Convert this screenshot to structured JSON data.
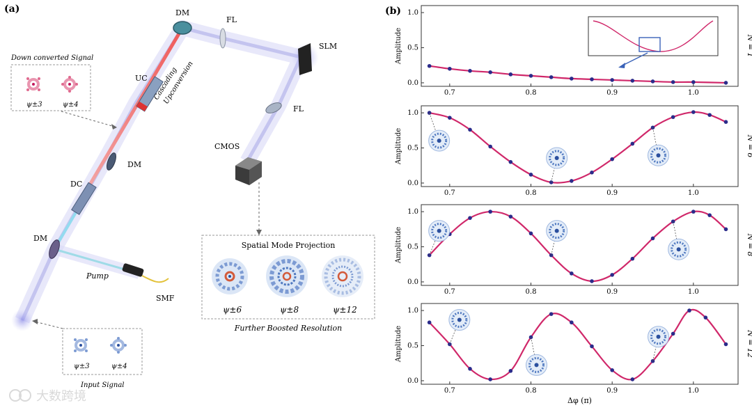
{
  "panel_a": {
    "label": "(a)",
    "components": {
      "dm_top": "DM",
      "fl_top": "FL",
      "slm": "SLM",
      "fl_right": "FL",
      "uc": "UC",
      "dm_mid": "DM",
      "dc": "DC",
      "dm_bottom": "DM",
      "cmos": "CMOS",
      "smf": "SMF",
      "pump": "Pump"
    },
    "cascading": [
      "Cascading",
      "Upconversion"
    ],
    "down_converted": {
      "title": "Down converted Signal",
      "modes": [
        "ψ±3",
        "ψ±4"
      ]
    },
    "input_signal": {
      "title": "Input Signal",
      "modes": [
        "ψ±3",
        "ψ±4"
      ]
    },
    "projection": {
      "title": "Spatial Mode Projection",
      "modes": [
        "ψ±6",
        "ψ±8",
        "ψ±12"
      ],
      "caption": "Further Boosted Resolution"
    }
  },
  "panel_b": {
    "label": "(b)",
    "watermark": "大数跨境"
  },
  "chart_data": [
    {
      "type": "line",
      "n_label": "N = 1",
      "ylabel": "Amplitude",
      "xlabel": "",
      "xlim": [
        0.665,
        1.055
      ],
      "ylim": [
        -0.05,
        1.1
      ],
      "xticks": [
        "0.7",
        "0.8",
        "0.9",
        "1.0"
      ],
      "yticks": [
        "0.0",
        "0.5",
        "1.0"
      ],
      "x": [
        0.675,
        0.7,
        0.725,
        0.75,
        0.775,
        0.8,
        0.825,
        0.85,
        0.875,
        0.9,
        0.925,
        0.95,
        0.975,
        1.0,
        1.04
      ],
      "points": [
        0.24,
        0.2,
        0.17,
        0.15,
        0.12,
        0.1,
        0.08,
        0.06,
        0.05,
        0.04,
        0.03,
        0.02,
        0.01,
        0.01,
        0.0
      ],
      "frequency": 1
    },
    {
      "type": "line",
      "n_label": "N = 6",
      "ylabel": "Amplitude",
      "xlabel": "",
      "xlim": [
        0.665,
        1.055
      ],
      "ylim": [
        -0.05,
        1.1
      ],
      "xticks": [
        "0.7",
        "0.8",
        "0.9",
        "1.0"
      ],
      "yticks": [
        "0.0",
        "0.5",
        "1.0"
      ],
      "x": [
        0.675,
        0.7,
        0.725,
        0.75,
        0.775,
        0.8,
        0.825,
        0.85,
        0.875,
        0.9,
        0.925,
        0.95,
        0.975,
        1.0,
        1.02,
        1.04
      ],
      "points": [
        1.0,
        0.93,
        0.76,
        0.52,
        0.3,
        0.12,
        0.01,
        0.03,
        0.15,
        0.34,
        0.56,
        0.79,
        0.94,
        1.01,
        0.97,
        0.87
      ],
      "frequency": 6
    },
    {
      "type": "line",
      "n_label": "N = 8",
      "ylabel": "Amplitude",
      "xlabel": "",
      "xlim": [
        0.665,
        1.055
      ],
      "ylim": [
        -0.05,
        1.1
      ],
      "xticks": [
        "0.7",
        "0.8",
        "0.9",
        "1.0"
      ],
      "yticks": [
        "0.0",
        "0.5",
        "1.0"
      ],
      "x": [
        0.675,
        0.7,
        0.725,
        0.75,
        0.775,
        0.8,
        0.825,
        0.85,
        0.875,
        0.9,
        0.925,
        0.95,
        0.975,
        1.0,
        1.02,
        1.04
      ],
      "points": [
        0.38,
        0.68,
        0.91,
        1.0,
        0.93,
        0.69,
        0.38,
        0.12,
        0.01,
        0.1,
        0.33,
        0.62,
        0.86,
        1.0,
        0.95,
        0.75
      ],
      "frequency": 8
    },
    {
      "type": "line",
      "n_label": "N = 12",
      "ylabel": "Amplitude",
      "xlabel": "Δφ (π)",
      "xlim": [
        0.665,
        1.055
      ],
      "ylim": [
        -0.05,
        1.1
      ],
      "xticks": [
        "0.7",
        "0.8",
        "0.9",
        "1.0"
      ],
      "yticks": [
        "0.0",
        "0.5",
        "1.0"
      ],
      "x": [
        0.675,
        0.7,
        0.725,
        0.75,
        0.775,
        0.8,
        0.825,
        0.85,
        0.875,
        0.9,
        0.925,
        0.95,
        0.975,
        0.995,
        1.015,
        1.04
      ],
      "points": [
        0.83,
        0.52,
        0.17,
        0.02,
        0.14,
        0.62,
        0.95,
        0.83,
        0.49,
        0.15,
        0.02,
        0.28,
        0.67,
        1.0,
        0.9,
        0.52
      ],
      "frequency": 12
    }
  ]
}
